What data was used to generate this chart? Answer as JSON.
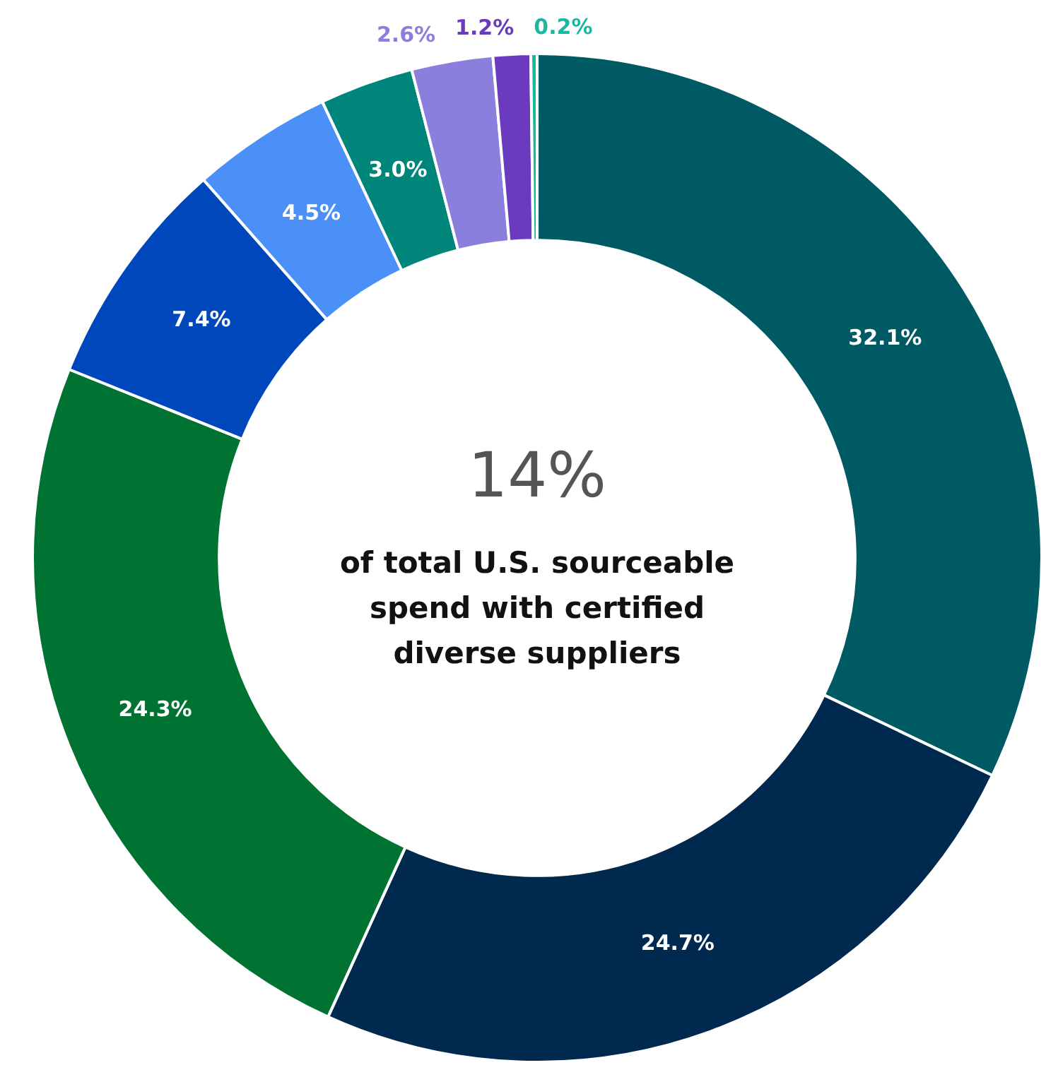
{
  "chart_data": {
    "type": "donut",
    "categories": [
      null,
      null,
      null,
      null,
      null,
      null,
      null,
      null,
      null
    ],
    "values": [
      32.1,
      24.7,
      24.3,
      7.4,
      4.5,
      3.0,
      2.6,
      1.2,
      0.2
    ],
    "colors": [
      "#005a63",
      "#00294f",
      "#007232",
      "#0047bb",
      "#4a90f7",
      "#00857a",
      "#8a7fdc",
      "#6a3bbf",
      "#1ab8a0"
    ],
    "value_labels": [
      "32.1%",
      "24.7%",
      "24.3%",
      "7.4%",
      "4.5%",
      "3.0%",
      "2.6%",
      "1.2%",
      "0.2%"
    ],
    "annotations": [
      "14%",
      "of total U.S. sourceable spend with certified diverse suppliers"
    ]
  }
}
